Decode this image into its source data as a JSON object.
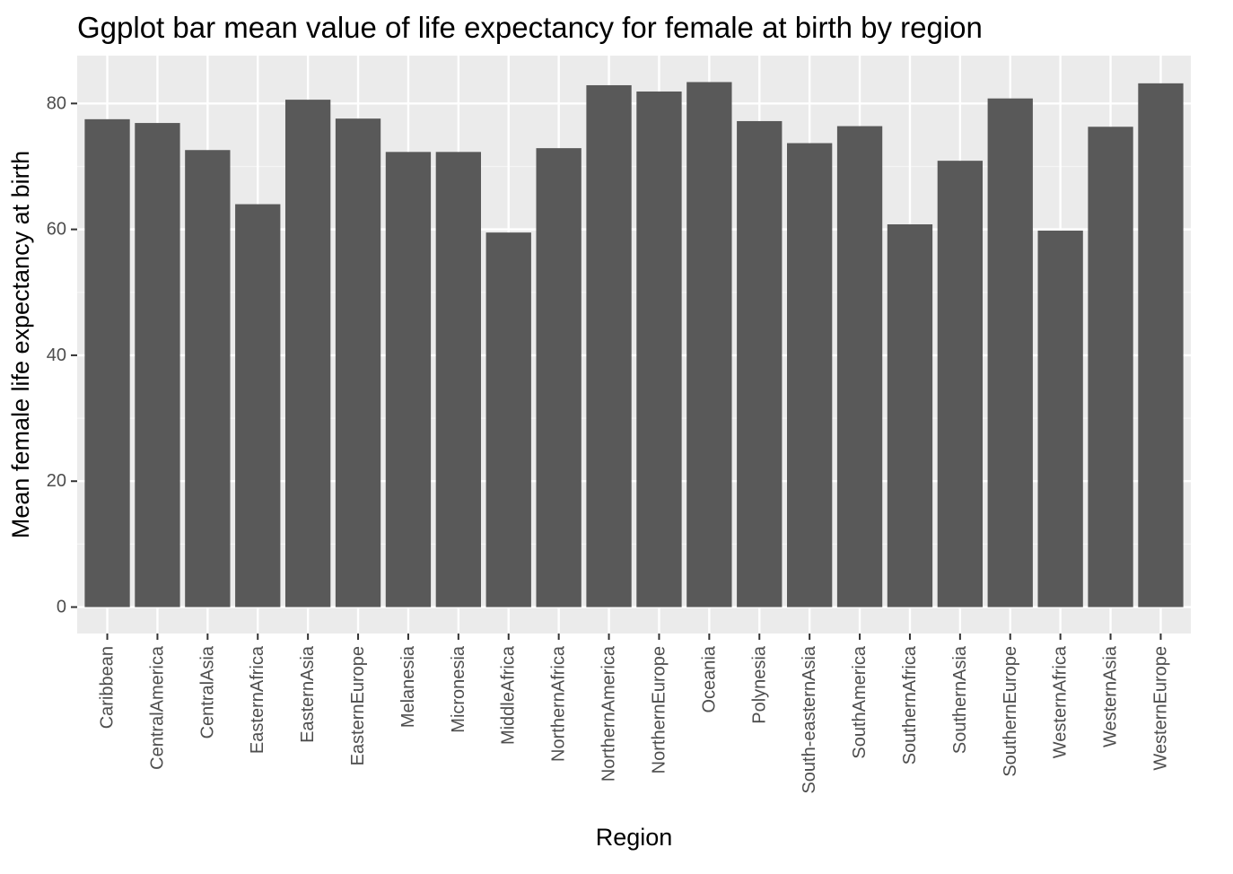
{
  "chart_data": {
    "type": "bar",
    "title": "Ggplot bar mean value of life expectancy for female at birth by region",
    "xlabel": "Region",
    "ylabel": "Mean female life expectancy at birth",
    "categories": [
      "Caribbean",
      "CentralAmerica",
      "CentralAsia",
      "EasternAfrica",
      "EasternAsia",
      "EasternEurope",
      "Melanesia",
      "Micronesia",
      "MiddleAfrica",
      "NorthernAfrica",
      "NorthernAmerica",
      "NorthernEurope",
      "Oceania",
      "Polynesia",
      "South-easternAsia",
      "SouthAmerica",
      "SouthernAfrica",
      "SouthernAsia",
      "SouthernEurope",
      "WesternAfrica",
      "WesternAsia",
      "WesternEurope"
    ],
    "values": [
      77.5,
      76.9,
      72.6,
      64.0,
      80.6,
      77.6,
      72.3,
      72.3,
      59.5,
      72.9,
      82.9,
      81.9,
      83.4,
      77.2,
      73.7,
      76.4,
      60.8,
      70.9,
      80.8,
      59.8,
      76.3,
      83.2
    ],
    "ylim": [
      -4.2,
      87.6
    ],
    "yticks": [
      0,
      20,
      40,
      60,
      80
    ],
    "grid": true,
    "legend": "none",
    "colors": {
      "bar": "#595959",
      "panel": "#ebebeb",
      "grid_major": "#ffffff",
      "grid_minor": "#f5f5f5",
      "tick": "#333333"
    }
  }
}
